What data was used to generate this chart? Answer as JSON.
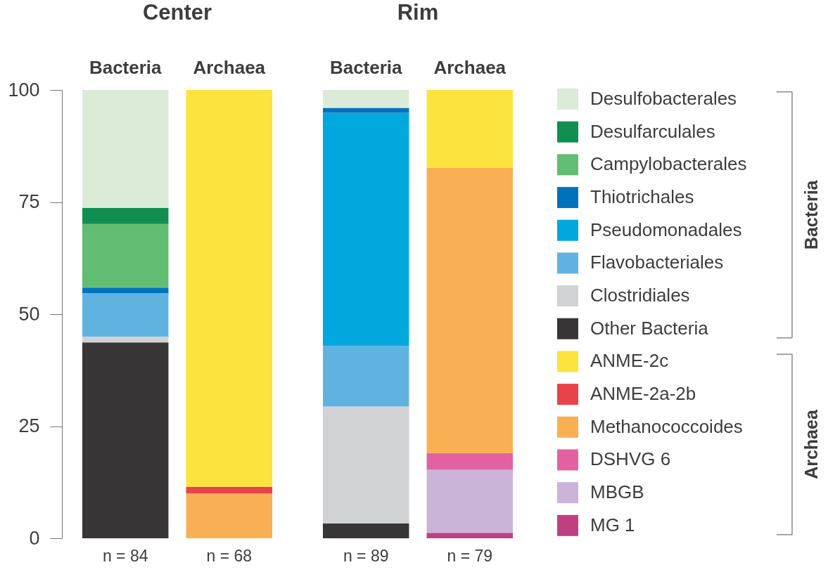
{
  "chart_data": [
    {
      "type": "bar",
      "title": "Center",
      "stacked": true,
      "categories": [
        "Bacteria",
        "Archaea"
      ],
      "ylim": [
        0,
        100
      ],
      "yticks": [
        0,
        25,
        50,
        75,
        100
      ],
      "legend": "right",
      "series": [
        {
          "name": "MG 1",
          "color": "#c03f82",
          "values": [
            null,
            null
          ]
        },
        {
          "name": "MBGB",
          "color": "#c9b4d8",
          "values": [
            null,
            null
          ]
        },
        {
          "name": "DSHVG 6",
          "color": "#e262a1",
          "values": [
            null,
            null
          ]
        },
        {
          "name": "Methanococcoides",
          "color": "#f9af53",
          "values": [
            null,
            10.0
          ]
        },
        {
          "name": "ANME-2a-2b",
          "color": "#e8424b",
          "values": [
            null,
            1.5
          ]
        },
        {
          "name": "ANME-2c",
          "color": "#fde33e",
          "values": [
            null,
            88.5
          ]
        },
        {
          "name": "Other Bacteria",
          "color": "#373536",
          "values": [
            43.7,
            null
          ]
        },
        {
          "name": "Clostridiales",
          "color": "#d1d2d4",
          "values": [
            1.3,
            null
          ]
        },
        {
          "name": "Flavobacteriales",
          "color": "#60b3e0",
          "values": [
            9.7,
            null
          ]
        },
        {
          "name": "Pseudomonadales",
          "color": "#00a8de",
          "values": [
            null,
            null
          ]
        },
        {
          "name": "Thiotrichales",
          "color": "#0072bc",
          "values": [
            1.2,
            null
          ]
        },
        {
          "name": "Campylobacterales",
          "color": "#63bd72",
          "values": [
            14.2,
            null
          ]
        },
        {
          "name": "Desulfarculales",
          "color": "#108f50",
          "values": [
            3.6,
            null
          ]
        },
        {
          "name": "Desulfobacterales",
          "color": "#dcebd7",
          "values": [
            26.3,
            null
          ]
        }
      ],
      "annotations": [
        {
          "text": "n = 84",
          "x": "Bacteria",
          "y": 0
        },
        {
          "text": "n = 68",
          "x": "Archaea",
          "y": 0
        },
        "Bacteria",
        "Archaea"
      ]
    },
    {
      "type": "bar",
      "title": "Rim",
      "stacked": true,
      "categories": [
        "Bacteria",
        "Archaea"
      ],
      "ylim": [
        0,
        100
      ],
      "tick_labels": "x",
      "series": [
        {
          "color": "#c03f82",
          "values": [
            null,
            1.2
          ]
        },
        {
          "color": "#c9b4d8",
          "values": [
            null,
            14.1
          ]
        },
        {
          "color": "#e262a1",
          "values": [
            null,
            3.7
          ]
        },
        {
          "color": "#f9af53",
          "values": [
            null,
            63.6
          ]
        },
        {
          "color": "#e8424b",
          "values": [
            null,
            null
          ]
        },
        {
          "color": "#fde33e",
          "values": [
            null,
            17.4
          ]
        },
        {
          "color": "#373536",
          "values": [
            3.3,
            null
          ]
        },
        {
          "color": "#d1d2d4",
          "values": [
            26.1,
            null
          ]
        },
        {
          "color": "#60b3e0",
          "values": [
            13.5,
            null
          ]
        },
        {
          "color": "#00a8de",
          "values": [
            52.0,
            null
          ]
        },
        {
          "color": "#0072bc",
          "values": [
            1.1,
            null
          ]
        },
        {
          "color": "#63bd72",
          "values": [
            null,
            null
          ]
        },
        {
          "color": "#108f50",
          "values": [
            null,
            null
          ]
        },
        {
          "color": "#dcebd7",
          "values": [
            4.0,
            null
          ]
        }
      ],
      "annotations": [
        {
          "text": "n = 89",
          "x": "Bacteria",
          "y": 0
        },
        {
          "text": "n = 79",
          "x": "Archaea",
          "y": 0
        }
      ]
    }
  ]
}
